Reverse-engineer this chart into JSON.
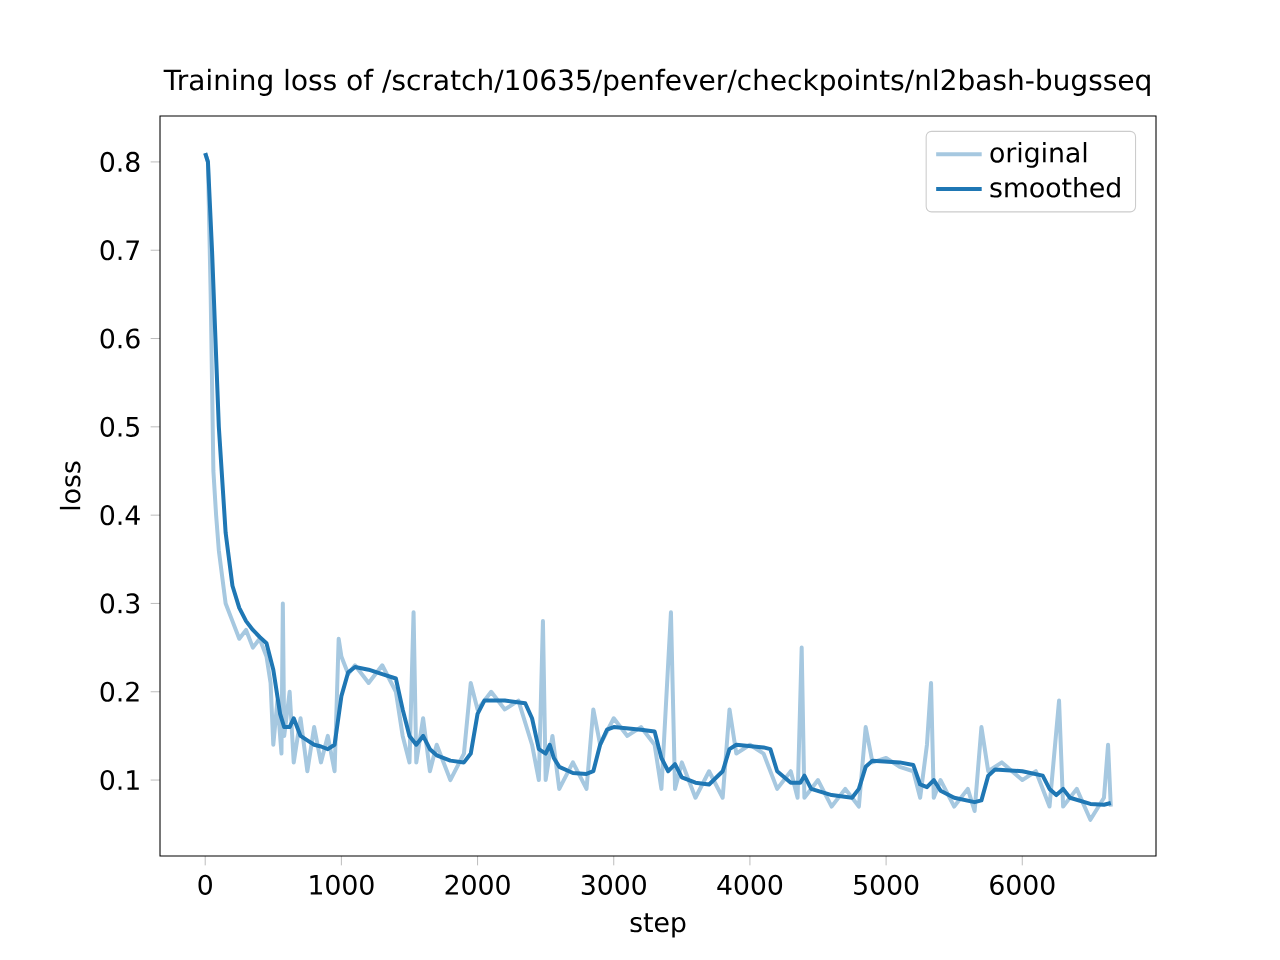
{
  "chart_data": {
    "type": "line",
    "title": "Training loss of /scratch/10635/penfever/checkpoints/nl2bash-bugsseq",
    "xlabel": "step",
    "ylabel": "loss",
    "xlim": [
      -332,
      6982
    ],
    "ylim": [
      0.014,
      0.852
    ],
    "xticks": [
      0,
      1000,
      2000,
      3000,
      4000,
      5000,
      6000
    ],
    "yticks": [
      0.1,
      0.2,
      0.3,
      0.4,
      0.5,
      0.6,
      0.7,
      0.8
    ],
    "grid": false,
    "legend": "top right",
    "marker": "none",
    "line_style": "solid",
    "series": [
      {
        "name": "original",
        "color": "#a6c8e0",
        "x": [
          0,
          20,
          40,
          60,
          80,
          100,
          150,
          200,
          250,
          300,
          350,
          400,
          450,
          480,
          500,
          530,
          560,
          570,
          580,
          620,
          650,
          700,
          750,
          800,
          850,
          900,
          950,
          980,
          1000,
          1050,
          1100,
          1200,
          1300,
          1400,
          1450,
          1500,
          1530,
          1550,
          1600,
          1650,
          1700,
          1800,
          1900,
          1950,
          2000,
          2100,
          2200,
          2300,
          2400,
          2450,
          2480,
          2500,
          2550,
          2600,
          2700,
          2800,
          2850,
          2900,
          3000,
          3100,
          3200,
          3300,
          3350,
          3420,
          3450,
          3500,
          3600,
          3700,
          3800,
          3850,
          3900,
          4000,
          4100,
          4200,
          4300,
          4350,
          4380,
          4400,
          4500,
          4600,
          4700,
          4800,
          4850,
          4900,
          5000,
          5100,
          5200,
          5250,
          5300,
          5330,
          5350,
          5400,
          5500,
          5600,
          5650,
          5700,
          5750,
          5850,
          6000,
          6100,
          6200,
          6270,
          6300,
          6400,
          6500,
          6600,
          6630,
          6650
        ],
        "values": [
          0.81,
          0.8,
          0.65,
          0.45,
          0.4,
          0.36,
          0.3,
          0.28,
          0.26,
          0.27,
          0.25,
          0.26,
          0.24,
          0.21,
          0.14,
          0.19,
          0.13,
          0.3,
          0.15,
          0.2,
          0.12,
          0.17,
          0.11,
          0.16,
          0.12,
          0.15,
          0.11,
          0.26,
          0.24,
          0.22,
          0.23,
          0.21,
          0.23,
          0.2,
          0.15,
          0.12,
          0.29,
          0.12,
          0.17,
          0.11,
          0.14,
          0.1,
          0.13,
          0.21,
          0.18,
          0.2,
          0.18,
          0.19,
          0.14,
          0.1,
          0.28,
          0.1,
          0.15,
          0.09,
          0.12,
          0.09,
          0.18,
          0.14,
          0.17,
          0.15,
          0.16,
          0.14,
          0.09,
          0.29,
          0.09,
          0.12,
          0.08,
          0.11,
          0.08,
          0.18,
          0.13,
          0.14,
          0.13,
          0.09,
          0.11,
          0.08,
          0.25,
          0.08,
          0.1,
          0.07,
          0.09,
          0.07,
          0.16,
          0.12,
          0.125,
          0.115,
          0.11,
          0.08,
          0.14,
          0.21,
          0.08,
          0.1,
          0.07,
          0.09,
          0.065,
          0.16,
          0.11,
          0.12,
          0.1,
          0.11,
          0.07,
          0.19,
          0.07,
          0.09,
          0.055,
          0.08,
          0.14,
          0.07
        ]
      },
      {
        "name": "smoothed",
        "color": "#1f77b4",
        "x": [
          0,
          20,
          50,
          100,
          150,
          200,
          250,
          300,
          350,
          400,
          450,
          500,
          550,
          580,
          620,
          650,
          700,
          750,
          800,
          850,
          900,
          950,
          1000,
          1050,
          1100,
          1200,
          1300,
          1400,
          1450,
          1500,
          1550,
          1600,
          1650,
          1700,
          1800,
          1900,
          1950,
          2000,
          2050,
          2200,
          2350,
          2400,
          2450,
          2500,
          2530,
          2560,
          2600,
          2700,
          2800,
          2850,
          2900,
          2950,
          3000,
          3200,
          3300,
          3350,
          3400,
          3450,
          3500,
          3600,
          3700,
          3800,
          3850,
          3900,
          4100,
          4150,
          4200,
          4300,
          4370,
          4400,
          4450,
          4600,
          4750,
          4800,
          4850,
          4900,
          5100,
          5200,
          5250,
          5300,
          5350,
          5400,
          5500,
          5650,
          5700,
          5750,
          5800,
          6000,
          6150,
          6200,
          6250,
          6300,
          6350,
          6500,
          6600,
          6650
        ],
        "values": [
          0.81,
          0.8,
          0.7,
          0.5,
          0.38,
          0.32,
          0.295,
          0.28,
          0.27,
          0.262,
          0.255,
          0.225,
          0.175,
          0.16,
          0.16,
          0.17,
          0.15,
          0.145,
          0.14,
          0.138,
          0.135,
          0.14,
          0.195,
          0.222,
          0.228,
          0.225,
          0.22,
          0.215,
          0.18,
          0.15,
          0.14,
          0.15,
          0.135,
          0.128,
          0.122,
          0.12,
          0.13,
          0.175,
          0.19,
          0.19,
          0.187,
          0.17,
          0.135,
          0.13,
          0.14,
          0.125,
          0.115,
          0.108,
          0.107,
          0.11,
          0.14,
          0.157,
          0.16,
          0.157,
          0.155,
          0.125,
          0.11,
          0.118,
          0.103,
          0.097,
          0.095,
          0.11,
          0.135,
          0.14,
          0.137,
          0.135,
          0.11,
          0.097,
          0.097,
          0.105,
          0.09,
          0.083,
          0.08,
          0.09,
          0.115,
          0.122,
          0.12,
          0.117,
          0.095,
          0.092,
          0.1,
          0.088,
          0.08,
          0.075,
          0.077,
          0.105,
          0.112,
          0.11,
          0.105,
          0.09,
          0.083,
          0.09,
          0.08,
          0.073,
          0.072,
          0.074
        ]
      }
    ]
  }
}
